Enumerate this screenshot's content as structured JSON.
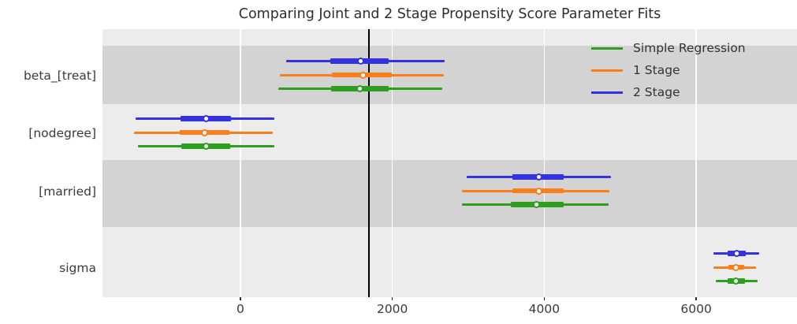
{
  "title": "Comparing Joint and 2 Stage Propensity Score Parameter Fits",
  "chart_data": {
    "type": "forest-errorbar",
    "title": "Comparing Joint and 2 Stage Propensity Score Parameter Fits",
    "parameters": [
      "beta_[treat]",
      "[nodegree]",
      "[married]",
      "sigma"
    ],
    "xticks": [
      0,
      2000,
      4000,
      6000
    ],
    "xlim": [
      -1816,
      7327
    ],
    "ref_line_x": 1690,
    "grid": "vertical-white",
    "legend_position": "upper right",
    "plot_bg_light": "#ececec",
    "plot_bg_dark": "#d3d3d3",
    "series": [
      {
        "name": "Simple Regression",
        "color": "#2f9e20",
        "points": [
          {
            "parameter": "beta_[treat]",
            "estimate": 1575,
            "hdi50": [
              1195,
              1950
            ],
            "hdi95": [
              495,
              2655
            ]
          },
          {
            "parameter": "[nodegree]",
            "estimate": -450,
            "hdi50": [
              -780,
              -135
            ],
            "hdi95": [
              -1350,
              445
            ]
          },
          {
            "parameter": "[married]",
            "estimate": 3900,
            "hdi50": [
              3560,
              4255
            ],
            "hdi95": [
              2915,
              4845
            ]
          },
          {
            "parameter": "sigma",
            "estimate": 6520,
            "hdi50": [
              6415,
              6640
            ],
            "hdi95": [
              6255,
              6805
            ]
          }
        ]
      },
      {
        "name": "1 Stage",
        "color": "#f87f1b",
        "points": [
          {
            "parameter": "beta_[treat]",
            "estimate": 1610,
            "hdi50": [
              1205,
              1990
            ],
            "hdi95": [
              520,
              2680
            ]
          },
          {
            "parameter": "[nodegree]",
            "estimate": -475,
            "hdi50": [
              -795,
              -140
            ],
            "hdi95": [
              -1400,
              425
            ]
          },
          {
            "parameter": "[married]",
            "estimate": 3925,
            "hdi50": [
              3580,
              4255
            ],
            "hdi95": [
              2915,
              4855
            ]
          },
          {
            "parameter": "sigma",
            "estimate": 6525,
            "hdi50": [
              6425,
              6635
            ],
            "hdi95": [
              6225,
              6790
            ]
          }
        ]
      },
      {
        "name": "2 Stage",
        "color": "#3432e0",
        "points": [
          {
            "parameter": "beta_[treat]",
            "estimate": 1580,
            "hdi50": [
              1185,
              1950
            ],
            "hdi95": [
              600,
              2690
            ]
          },
          {
            "parameter": "[nodegree]",
            "estimate": -450,
            "hdi50": [
              -790,
              -125
            ],
            "hdi95": [
              -1375,
              445
            ]
          },
          {
            "parameter": "[married]",
            "estimate": 3925,
            "hdi50": [
              3580,
              4255
            ],
            "hdi95": [
              2975,
              4880
            ]
          },
          {
            "parameter": "sigma",
            "estimate": 6530,
            "hdi50": [
              6415,
              6650
            ],
            "hdi95": [
              6225,
              6825
            ]
          }
        ]
      }
    ]
  }
}
